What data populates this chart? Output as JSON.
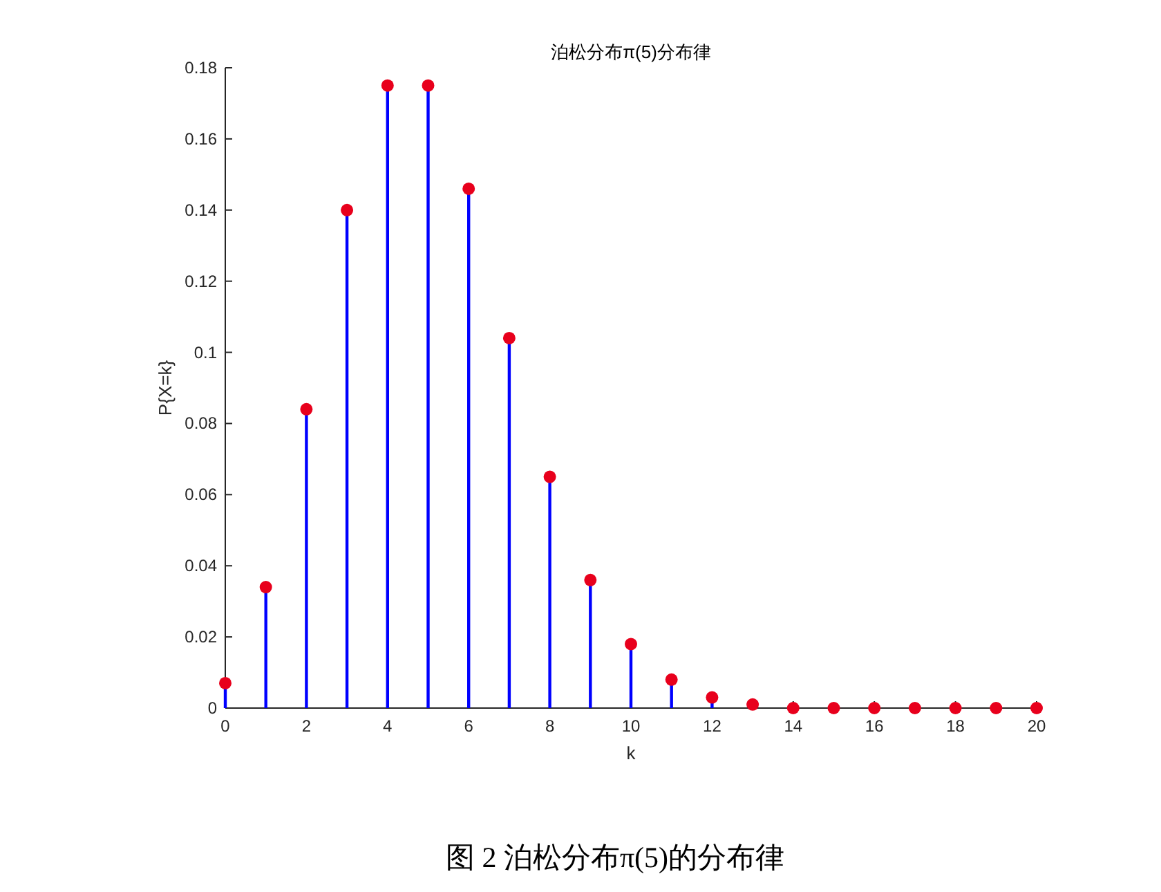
{
  "chart_data": {
    "type": "lollipop",
    "title": "泊松分布π(5)分布律",
    "xlabel": "k",
    "ylabel": "P{X=k}",
    "x": [
      0,
      1,
      2,
      3,
      4,
      5,
      6,
      7,
      8,
      9,
      10,
      11,
      12,
      13,
      14,
      15,
      16,
      17,
      18,
      19,
      20
    ],
    "series": [
      {
        "color": "#e8001c",
        "values": [
          0.007,
          0.034,
          0.084,
          0.14,
          0.175,
          0.175,
          0.146,
          0.104,
          0.065,
          0.036,
          0.018,
          0.008,
          0.003,
          0.001,
          0.0,
          0.0,
          0.0,
          0.0,
          0.0,
          0.0,
          0.0
        ]
      }
    ],
    "xlim": [
      0,
      20
    ],
    "xticks": [
      0,
      2,
      4,
      6,
      8,
      10,
      12,
      14,
      16,
      18,
      20
    ],
    "ylim": [
      0,
      0.18
    ],
    "yticks": [
      0,
      0.02,
      0.04,
      0.06,
      0.08,
      0.1,
      0.12,
      0.14,
      0.16,
      0.18
    ],
    "marker": "circle",
    "annotations": [
      "图 2  泊松分布π(5)的分布律"
    ]
  }
}
